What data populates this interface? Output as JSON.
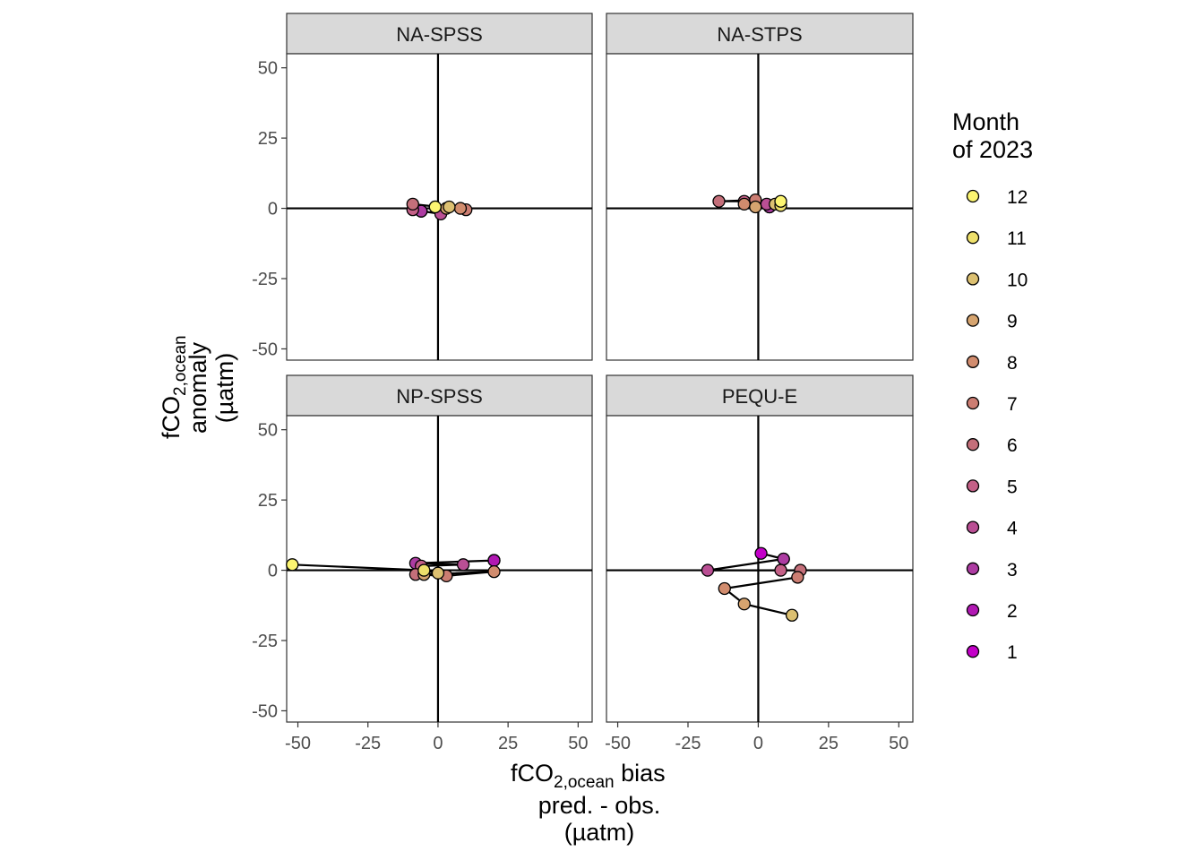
{
  "chart_data": {
    "type": "scatter",
    "facets": [
      "NA-SPSS",
      "NA-STPS",
      "NP-SPSS",
      "PEQU-E"
    ],
    "x_axis": {
      "title_main": "fCO",
      "title_sub": "2,ocean",
      "title_rest": " bias",
      "title_line2": "pred. - obs.",
      "title_line3": "(µatm)",
      "ticks": [
        -50,
        -25,
        0,
        25,
        50
      ],
      "tick_labels": [
        "-50",
        "-25",
        "0",
        "25",
        "50"
      ],
      "lim": [
        -54,
        55
      ]
    },
    "y_axis": {
      "title_main": "fCO",
      "title_sub": "2,ocean",
      "title_line2": "anomaly",
      "title_line3": "(µatm)",
      "ticks": [
        -50,
        -25,
        0,
        25,
        50
      ],
      "tick_labels": [
        "-50",
        "-25",
        "0",
        "25",
        "50"
      ],
      "lim": [
        -54,
        55
      ]
    },
    "legend": {
      "title_line1": "Month",
      "title_line2": "of 2023",
      "labels": [
        "12",
        "11",
        "10",
        "9",
        "8",
        "7",
        "6",
        "5",
        "4",
        "3",
        "2",
        "1"
      ]
    },
    "month_colors": {
      "1": "#c300c8",
      "2": "#b118b3",
      "3": "#ad3ca2",
      "4": "#ba4f94",
      "5": "#c46087",
      "6": "#c46f7a",
      "7": "#cc7d72",
      "8": "#d18c6e",
      "9": "#d6a46f",
      "10": "#dcc071",
      "11": "#eee06b",
      "12": "#fcf571"
    },
    "series": [
      {
        "facet": "NA-SPSS",
        "points": [
          {
            "month": 1,
            "x": -6,
            "y": -1
          },
          {
            "month": 2,
            "x": -6,
            "y": -1
          },
          {
            "month": 3,
            "x": -6,
            "y": -1
          },
          {
            "month": 4,
            "x": 1,
            "y": -2
          },
          {
            "month": 5,
            "x": -9,
            "y": -0.5
          },
          {
            "month": 6,
            "x": -9,
            "y": 1.5
          },
          {
            "month": 7,
            "x": 10,
            "y": -0.5
          },
          {
            "month": 8,
            "x": 8,
            "y": 0
          },
          {
            "month": 9,
            "x": 3,
            "y": 0
          },
          {
            "month": 10,
            "x": 4,
            "y": 0.5
          },
          {
            "month": 11,
            "x": -1,
            "y": 0.5
          },
          {
            "month": 12,
            "x": -1,
            "y": 0.5
          }
        ]
      },
      {
        "facet": "NA-STPS",
        "points": [
          {
            "month": 1,
            "x": 4,
            "y": 0.5
          },
          {
            "month": 2,
            "x": 4,
            "y": 0.5
          },
          {
            "month": 3,
            "x": 4,
            "y": 0.5
          },
          {
            "month": 4,
            "x": 3,
            "y": 1.5
          },
          {
            "month": 5,
            "x": -5,
            "y": 2.5
          },
          {
            "month": 6,
            "x": -14,
            "y": 2.5
          },
          {
            "month": 7,
            "x": -1,
            "y": 3
          },
          {
            "month": 8,
            "x": -5,
            "y": 1.5
          },
          {
            "month": 9,
            "x": -1,
            "y": 0.5
          },
          {
            "month": 10,
            "x": 6,
            "y": 1.5
          },
          {
            "month": 11,
            "x": 8,
            "y": 1
          },
          {
            "month": 12,
            "x": 8,
            "y": 2.5
          }
        ]
      },
      {
        "facet": "NP-SPSS",
        "points": [
          {
            "month": 1,
            "x": 20,
            "y": 3.5
          },
          {
            "month": 2,
            "x": 20,
            "y": 3.5
          },
          {
            "month": 3,
            "x": -8,
            "y": 2.5
          },
          {
            "month": 4,
            "x": 9,
            "y": 2
          },
          {
            "month": 5,
            "x": -6,
            "y": 1.5
          },
          {
            "month": 6,
            "x": -8,
            "y": -1.5
          },
          {
            "month": 7,
            "x": 3,
            "y": -2
          },
          {
            "month": 8,
            "x": 20,
            "y": -0.5
          },
          {
            "month": 9,
            "x": -5,
            "y": -1.5
          },
          {
            "month": 10,
            "x": 0,
            "y": -1
          },
          {
            "month": 11,
            "x": -5,
            "y": 0
          },
          {
            "month": 12,
            "x": -52,
            "y": 2
          }
        ]
      },
      {
        "facet": "PEQU-E",
        "points": [
          {
            "month": 1,
            "x": 1,
            "y": 6
          },
          {
            "month": 2,
            "x": 9,
            "y": 4
          },
          {
            "month": 3,
            "x": 9,
            "y": 4
          },
          {
            "month": 4,
            "x": -18,
            "y": 0
          },
          {
            "month": 5,
            "x": 8,
            "y": 0
          },
          {
            "month": 6,
            "x": 15,
            "y": 0
          },
          {
            "month": 7,
            "x": 14,
            "y": -2.5
          },
          {
            "month": 8,
            "x": -12,
            "y": -6.5
          },
          {
            "month": 9,
            "x": -5,
            "y": -12
          },
          {
            "month": 10,
            "x": 12,
            "y": -16
          }
        ]
      }
    ],
    "grid": false,
    "legend_position": "right"
  }
}
